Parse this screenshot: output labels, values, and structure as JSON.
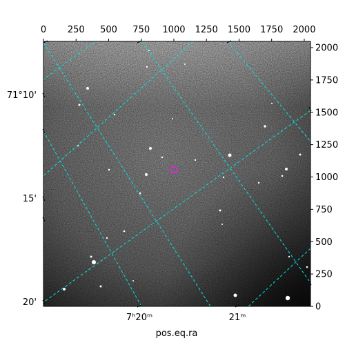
{
  "figure": {
    "xlabel": "pos.eq.ra",
    "pixel_axes": {
      "top_ticks": [
        "0",
        "250",
        "500",
        "750",
        "1000",
        "1250",
        "1500",
        "1750",
        "2000"
      ],
      "right_ticks": [
        "0",
        "250",
        "500",
        "750",
        "1000",
        "1250",
        "1500",
        "1750",
        "2000"
      ],
      "range": [
        0,
        2048
      ]
    },
    "dec_ticks": [
      "71°10'",
      "15'",
      "20'"
    ],
    "ra_ticks": [
      "7ʰ20ᵐ",
      "21ᵐ"
    ],
    "colors": {
      "grid": "#00e5e5",
      "marker": "#cc33cc",
      "background": "#ffffff"
    },
    "marker": {
      "x": 1000,
      "y": 1055
    }
  }
}
